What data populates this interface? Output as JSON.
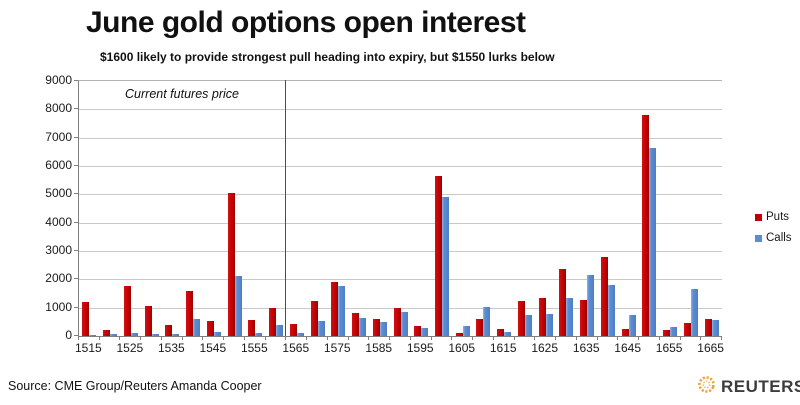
{
  "source": "Source: CME Group/Reuters Amanda Cooper",
  "logo": {
    "icon": "reuters-swirl-icon",
    "text": "REUTERS"
  },
  "chart_data": {
    "type": "bar",
    "title": "June gold options open interest",
    "subtitle": "$1600 likely to provide strongest pull heading into expiry, but $1550 lurks below",
    "categories": [
      1515,
      1520,
      1525,
      1530,
      1535,
      1540,
      1545,
      1550,
      1555,
      1560,
      1565,
      1570,
      1575,
      1580,
      1585,
      1590,
      1595,
      1600,
      1605,
      1610,
      1615,
      1620,
      1625,
      1630,
      1635,
      1640,
      1645,
      1650,
      1655,
      1660,
      1665
    ],
    "series": [
      {
        "name": "Puts",
        "color": "#c00000",
        "values": [
          1200,
          200,
          1750,
          1050,
          380,
          1600,
          530,
          5050,
          550,
          980,
          420,
          1250,
          1900,
          800,
          600,
          980,
          340,
          5650,
          120,
          590,
          240,
          1250,
          1330,
          2350,
          1270,
          2800,
          260,
          7800,
          200,
          450,
          610
        ]
      },
      {
        "name": "Calls",
        "color": "#5b8cd3",
        "values": [
          30,
          60,
          90,
          60,
          60,
          610,
          150,
          2120,
          100,
          380,
          120,
          530,
          1780,
          640,
          490,
          840,
          280,
          4900,
          350,
          1030,
          150,
          730,
          790,
          1330,
          2140,
          1790,
          730,
          6650,
          320,
          1650,
          550
        ]
      }
    ],
    "xlabel": "",
    "ylabel": "",
    "ylim": [
      0,
      9000
    ],
    "ytick_interval": 1000,
    "xtick_label_interval": 10,
    "grid": "horizontal",
    "legend_position": "right",
    "annotation": {
      "text": "Current futures price",
      "line_at_x": 1562.5
    }
  }
}
